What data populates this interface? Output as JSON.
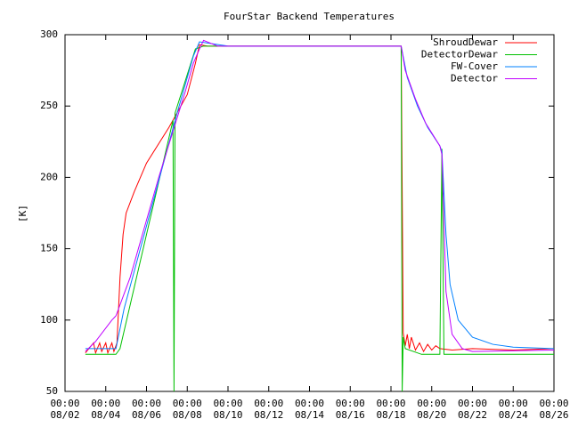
{
  "chart_data": {
    "type": "line",
    "title": "FourStar Backend Temperatures",
    "ylabel": "[K]",
    "xlim": [
      0,
      24
    ],
    "ylim": [
      50,
      300
    ],
    "xticks": [
      {
        "value": 0,
        "label": [
          "00:00",
          "08/02"
        ]
      },
      {
        "value": 2,
        "label": [
          "00:00",
          "08/04"
        ]
      },
      {
        "value": 4,
        "label": [
          "00:00",
          "08/06"
        ]
      },
      {
        "value": 6,
        "label": [
          "00:00",
          "08/08"
        ]
      },
      {
        "value": 8,
        "label": [
          "00:00",
          "08/10"
        ]
      },
      {
        "value": 10,
        "label": [
          "00:00",
          "08/12"
        ]
      },
      {
        "value": 12,
        "label": [
          "00:00",
          "08/14"
        ]
      },
      {
        "value": 14,
        "label": [
          "00:00",
          "08/16"
        ]
      },
      {
        "value": 16,
        "label": [
          "00:00",
          "08/18"
        ]
      },
      {
        "value": 18,
        "label": [
          "00:00",
          "08/20"
        ]
      },
      {
        "value": 20,
        "label": [
          "00:00",
          "08/22"
        ]
      },
      {
        "value": 22,
        "label": [
          "00:00",
          "08/24"
        ]
      },
      {
        "value": 24,
        "label": [
          "00:00",
          "08/26"
        ]
      }
    ],
    "yticks": [
      50,
      100,
      150,
      200,
      250,
      300
    ],
    "legend": "top-right",
    "series": [
      {
        "name": "ShroudDewar",
        "color": "#ff0000",
        "x": [
          1,
          1.4,
          1.5,
          1.7,
          1.8,
          2.0,
          2.1,
          2.3,
          2.4,
          2.55,
          2.7,
          2.85,
          3.0,
          3.4,
          4.0,
          5.1,
          6.0,
          6.4,
          6.6,
          7.0,
          16.5,
          16.6,
          16.7,
          16.8,
          16.9,
          17.0,
          17.2,
          17.4,
          17.6,
          17.8,
          18.0,
          18.2,
          18.4,
          19.0,
          20.0,
          22.0,
          24.0
        ],
        "values": [
          77,
          84,
          77,
          84,
          78,
          84,
          77,
          84,
          78,
          84,
          130,
          160,
          175,
          190,
          210,
          235,
          258,
          280,
          293,
          292,
          292,
          91,
          82,
          90,
          80,
          88,
          79,
          84,
          78,
          83,
          79,
          82,
          80,
          79,
          80,
          79,
          80
        ]
      },
      {
        "name": "DetectorDewar",
        "color": "#00c000",
        "x": [
          1,
          2.5,
          2.7,
          5.3,
          5.35,
          5.4,
          6.4,
          6.8,
          16.5,
          16.55,
          16.6,
          16.7,
          17.5,
          18.4,
          18.5,
          18.6,
          20.0,
          24.0
        ],
        "values": [
          76,
          76,
          80,
          240,
          50,
          245,
          290,
          292,
          292,
          50,
          88,
          80,
          76,
          76,
          220,
          76,
          76,
          76
        ]
      },
      {
        "name": "FW-Cover",
        "color": "#0080ff",
        "x": [
          1,
          2.5,
          2.9,
          5.5,
          6.3,
          6.6,
          8.0,
          16.5,
          16.8,
          17.3,
          17.8,
          18.4,
          18.5,
          18.7,
          18.9,
          19.3,
          20.0,
          21.0,
          22.0,
          24.0
        ],
        "values": [
          80,
          80,
          108,
          245,
          285,
          295,
          292,
          292,
          270,
          250,
          235,
          222,
          218,
          160,
          125,
          100,
          88,
          83,
          81,
          80
        ]
      },
      {
        "name": "Detector",
        "color": "#c000ff",
        "x": [
          1,
          1.5,
          2.3,
          2.5,
          3.2,
          4.6,
          5.9,
          6.3,
          6.6,
          6.8,
          7.5,
          16.5,
          16.7,
          17.2,
          17.7,
          18.4,
          18.5,
          18.7,
          19.0,
          19.5,
          20.0,
          24.0
        ],
        "values": [
          78,
          85,
          100,
          103,
          130,
          200,
          260,
          280,
          290,
          296,
          292,
          292,
          275,
          255,
          238,
          222,
          216,
          120,
          90,
          80,
          78,
          79
        ]
      }
    ]
  }
}
